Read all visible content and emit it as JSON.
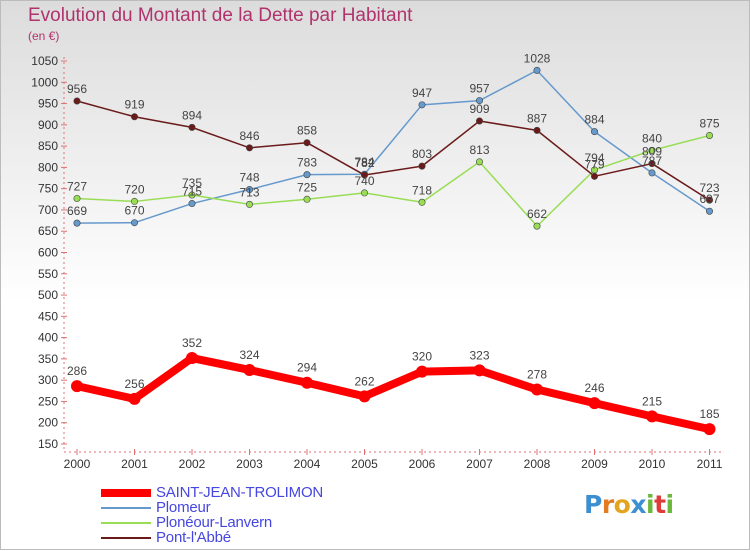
{
  "title": "Evolution du Montant de la Dette par Habitant",
  "unit_label": "(en €)",
  "chart_data": {
    "type": "line",
    "title": "Evolution du Montant de la Dette par Habitant",
    "ylabel": "(en €)",
    "xlabel": "",
    "categories": [
      "2000",
      "2001",
      "2002",
      "2003",
      "2004",
      "2005",
      "2006",
      "2007",
      "2008",
      "2009",
      "2010",
      "2011"
    ],
    "ylim": [
      150,
      1050
    ],
    "yticks": [
      150,
      200,
      250,
      300,
      350,
      400,
      450,
      500,
      550,
      600,
      650,
      700,
      750,
      800,
      850,
      900,
      950,
      1000,
      1050
    ],
    "grid": false,
    "legend_position": "bottom-left",
    "series": [
      {
        "name": "SAINT-JEAN-TROLIMON",
        "color": "#ff0000",
        "values": [
          286,
          256,
          352,
          324,
          294,
          262,
          320,
          323,
          278,
          246,
          215,
          185
        ]
      },
      {
        "name": "Plomeur",
        "color": "#6699cc",
        "values": [
          669,
          670,
          715,
          748,
          783,
          784,
          947,
          957,
          1028,
          884,
          787,
          697
        ]
      },
      {
        "name": "Plonéour-Lanvern",
        "color": "#99dd55",
        "values": [
          727,
          720,
          735,
          713,
          725,
          740,
          718,
          813,
          662,
          794,
          840,
          875
        ]
      },
      {
        "name": "Pont-l'Abbé",
        "color": "#6b1a1a",
        "values": [
          956,
          919,
          894,
          846,
          858,
          782,
          803,
          909,
          887,
          779,
          809,
          723
        ]
      }
    ]
  },
  "logo": {
    "letters": [
      "P",
      "r",
      "o",
      "x",
      "i",
      "t",
      "i"
    ],
    "colors": [
      "#3c8fd0",
      "#e37b22",
      "#e3a51f",
      "#3c8fd0",
      "#6bb83a",
      "#e03a3a",
      "#6bb83a"
    ]
  }
}
